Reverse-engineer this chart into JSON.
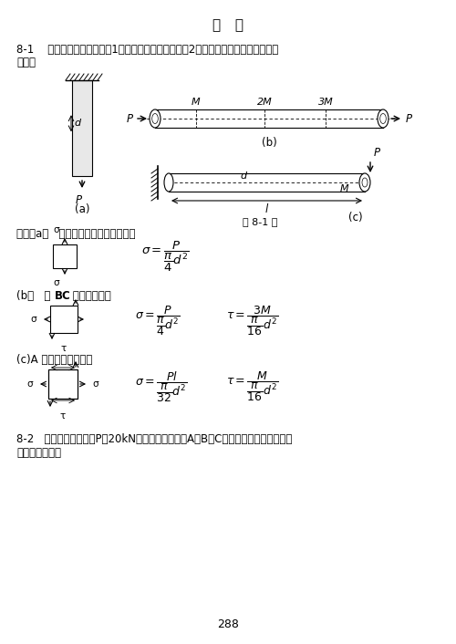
{
  "title": "习   题",
  "bg_color": "#ffffff",
  "text_color": "#000000",
  "page_number": "288",
  "p81_line1": "8-1    构件受力如图所示。（1）确定危险点的位置；（2）用单元体表示危险点的应力",
  "p81_line2": "状态。",
  "sol_a": "解：（a）   在任意横截面上，任意一点",
  "sol_b": "(b）   在 BC 段的外表面处",
  "sol_b_BC": "BC",
  "sol_c": "(c)A 截面的最上面一点",
  "fig_caption": "题 8-1 图",
  "p82_line1": "8-2   图示悬臂梁受载荷P＝20kN作用，试绘单元体A、B、C的应力图，并确定主应力",
  "p82_line2": "的大小及方位。"
}
